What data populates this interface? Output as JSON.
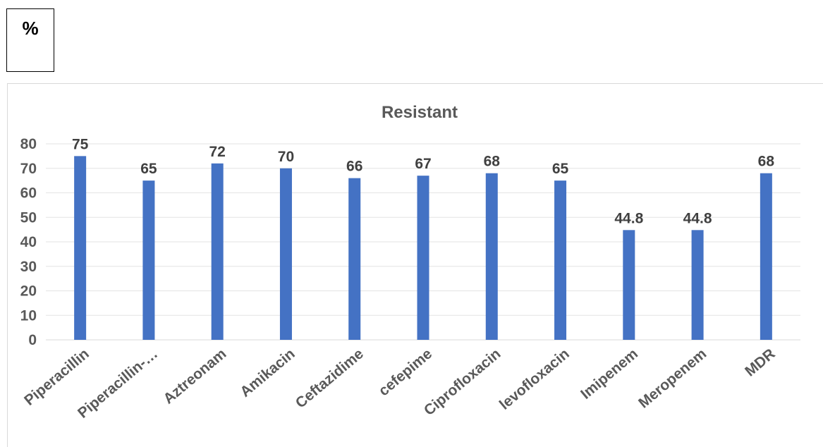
{
  "unit_label": "%",
  "chart_data": {
    "type": "bar",
    "title": "Resistant",
    "xlabel": "",
    "ylabel": "",
    "ylim": [
      0,
      80
    ],
    "yticks": [
      0,
      10,
      20,
      30,
      40,
      50,
      60,
      70,
      80
    ],
    "grid": true,
    "legend": "none",
    "bar_color": "#4472C4",
    "categories": [
      "Piperacillin",
      "Piperacillin-…",
      "Aztreonam",
      "Amikacin",
      "Ceftazidime",
      "cefepime",
      "Ciprofloxacin",
      "levofloxacin",
      "Imipenem",
      "Meropenem",
      "MDR"
    ],
    "values": [
      75,
      65,
      72,
      70,
      66,
      67,
      68,
      65,
      44.8,
      44.8,
      68
    ]
  }
}
